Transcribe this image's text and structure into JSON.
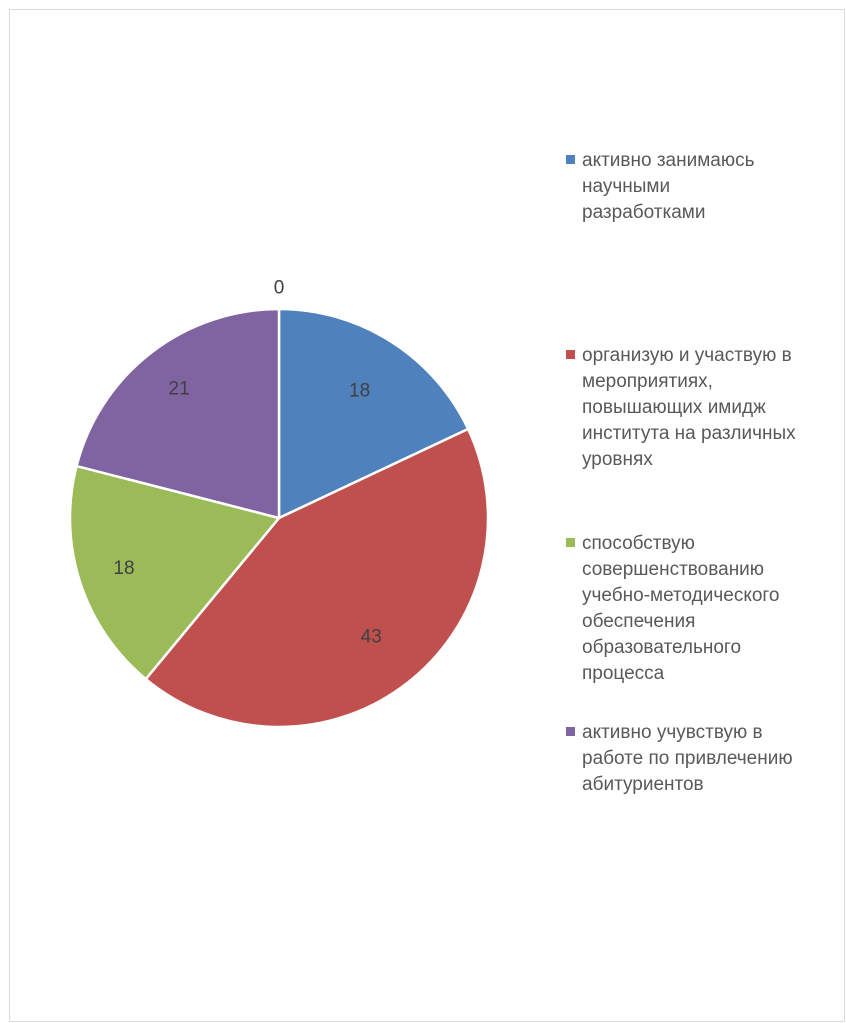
{
  "chart_data": {
    "type": "pie",
    "categories": [
      "активно занимаюсь научными разработками",
      "организую и участвую в мероприятиях, повышающих имидж института на различных уровнях",
      "способствую совершенствованию учебно-методического обеспечения образовательного процесса",
      "активно учувствую в работе по привлечению абитуриентов",
      ""
    ],
    "values": [
      18,
      43,
      18,
      21,
      0
    ],
    "colors": [
      "#4f81bd",
      "#c0504d",
      "#9bbb59",
      "#8064a2",
      "#4bacc6"
    ],
    "legend_position": "right",
    "data_labels": true
  },
  "legend": {
    "items": [
      {
        "lines": [
          "активно занимаюсь",
          "научными",
          "разработками"
        ]
      },
      {
        "lines": [
          "организую и участвую в",
          "мероприятиях,",
          "повышающих имидж",
          "института на различных",
          "уровнях"
        ]
      },
      {
        "lines": [
          "способствую",
          "совершенствованию",
          "учебно-методического",
          "обеспечения",
          "образовательного",
          "процесса"
        ]
      },
      {
        "lines": [
          "активно учувствую в",
          "работе по привлечению",
          "абитуриентов"
        ]
      }
    ]
  }
}
